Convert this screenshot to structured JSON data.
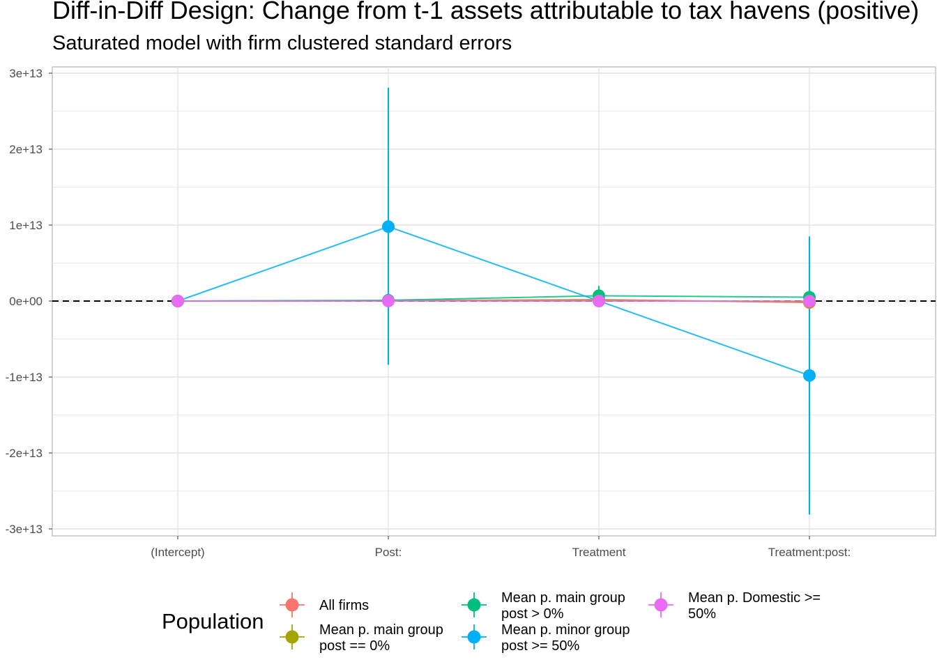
{
  "chart_data": {
    "type": "scatter",
    "title": "Diff-in-Diff Design: Change from t-1 assets attributable to tax havens (positive)",
    "subtitle": "Saturated model with firm clustered standard errors",
    "xlabel": "",
    "ylabel": "",
    "categories": [
      "(Intercept)",
      "Post:",
      "Treatment",
      "Treatment:post:"
    ],
    "ylim": [
      -30500000000000.0,
      31000000000000.0
    ],
    "yticks": [
      30000000000000.0,
      20000000000000.0,
      10000000000000.0,
      0,
      -10000000000000.0,
      -20000000000000.0,
      -30000000000000.0
    ],
    "ytick_labels": [
      "3e+13",
      "2e+13",
      "1e+13",
      "0e+00",
      "-1e+13",
      "-2e+13",
      "-3e+13"
    ],
    "reference_line": 0,
    "grid": true,
    "legend": {
      "title": "Population",
      "placement": "bottom"
    },
    "series": [
      {
        "name": "All firms",
        "color": "#F8766D",
        "values": [
          0,
          50000000000.0,
          200000000000.0,
          -200000000000.0
        ],
        "lower": [
          0,
          -100000000000.0,
          0,
          -400000000000.0
        ],
        "upper": [
          0,
          200000000000.0,
          400000000000.0,
          0
        ]
      },
      {
        "name": "Mean p. main group post == 0%",
        "color": "#A3A500",
        "values": [
          0,
          30000000000.0,
          100000000000.0,
          -100000000000.0
        ],
        "lower": [
          0,
          -50000000000.0,
          0,
          -200000000000.0
        ],
        "upper": [
          0,
          100000000000.0,
          200000000000.0,
          0
        ]
      },
      {
        "name": "Mean p. main group post > 0%",
        "color": "#00BF7D",
        "values": [
          0,
          100000000000.0,
          700000000000.0,
          500000000000.0
        ],
        "lower": [
          0,
          -50000000000.0,
          -50000000000.0,
          0
        ],
        "upper": [
          0,
          200000000000.0,
          2000000000000.0,
          1000000000000.0
        ]
      },
      {
        "name": "Mean p. minor group post >= 50%",
        "color": "#00B0F6",
        "values": [
          0,
          9800000000000.0,
          10000000000.0,
          -9800000000000.0
        ],
        "lower": [
          0,
          -8400000000000.0,
          0,
          -28100000000000.0
        ],
        "upper": [
          0,
          28100000000000.0,
          0,
          8500000000000.0
        ]
      },
      {
        "name": "Mean p. Domestic >= 50%",
        "color": "#E76BF3",
        "values": [
          0,
          10000000000.0,
          0,
          -10000000000.0
        ],
        "lower": [
          0,
          0,
          0,
          0
        ],
        "upper": [
          0,
          0,
          0,
          0
        ]
      }
    ]
  },
  "legend_labels": [
    [
      "All firms"
    ],
    [
      "Mean p. main group",
      "post == 0%"
    ],
    [
      "Mean p. main group",
      "post > 0%"
    ],
    [
      "Mean p. minor group",
      "post >= 50%"
    ],
    [
      "Mean p. Domestic >=",
      "50%"
    ]
  ]
}
